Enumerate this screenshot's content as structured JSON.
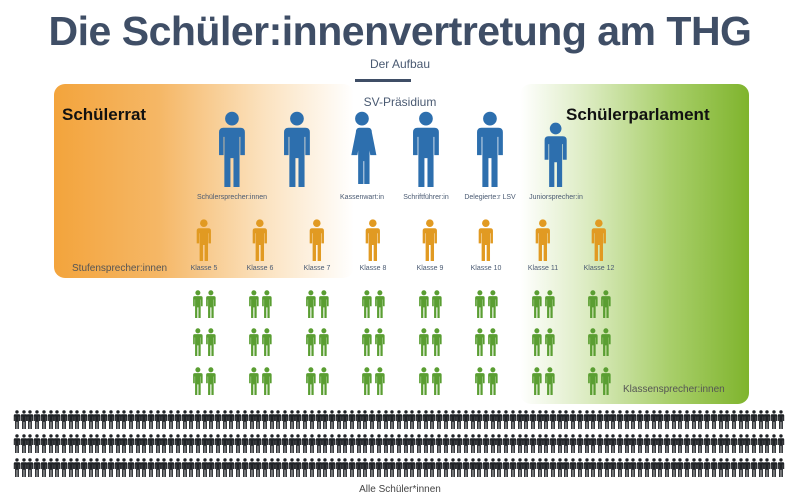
{
  "title": "Die Schüler:innenvertretung am THG",
  "subtitle": "Der Aufbau",
  "presidium_label": "SV-Präsidium",
  "left_group_label": "Schülerrat",
  "right_group_label": "Schülerparlament",
  "stufen_label": "Stufensprecher:innen",
  "klassen_label": "Klassensprecher:innen",
  "alle_label": "Alle Schüler*innen",
  "presidium": [
    {
      "caption": "Schülersprecher:innen"
    },
    {
      "caption": ""
    },
    {
      "caption": "Kassenwart:in"
    },
    {
      "caption": "Schriftführer:in"
    },
    {
      "caption": "Delegierte:r LSV"
    },
    {
      "caption": "Juniorsprecher:in"
    }
  ],
  "klassen": [
    "Klasse 5",
    "Klasse 6",
    "Klasse 7",
    "Klasse 8",
    "Klasse 9",
    "Klasse 10",
    "Klasse 11",
    "Klasse 12"
  ],
  "colors": {
    "presidium": "#2d6fae",
    "stufe": "#e19a22",
    "klasse": "#5a9e32",
    "schueler": "#1f2226",
    "title": "#3f4e66"
  }
}
